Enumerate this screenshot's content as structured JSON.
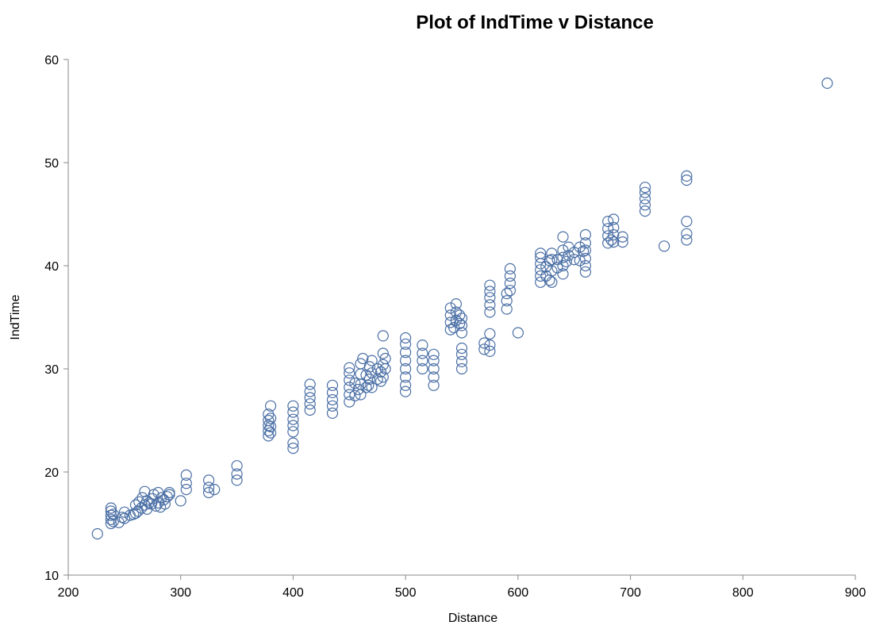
{
  "chart_data": {
    "type": "scatter",
    "title": "Plot of IndTime v Distance",
    "xlabel": "Distance",
    "ylabel": "IndTime",
    "xlim": [
      200,
      900
    ],
    "ylim": [
      10,
      60
    ],
    "xticks": [
      "200",
      "300",
      "400",
      "500",
      "600",
      "700",
      "800",
      "900"
    ],
    "yticks": [
      "10",
      "20",
      "30",
      "40",
      "50",
      "60"
    ],
    "grid": false,
    "legend": "none",
    "marker": "open-circle",
    "color": "#4a6fa5",
    "series": [
      {
        "points": [
          [
            226,
            14.0
          ],
          [
            238,
            15.0
          ],
          [
            238,
            15.4
          ],
          [
            238,
            15.8
          ],
          [
            238,
            16.2
          ],
          [
            238,
            16.5
          ],
          [
            240,
            15.2
          ],
          [
            240,
            15.9
          ],
          [
            245,
            15.1
          ],
          [
            248,
            15.6
          ],
          [
            250,
            15.5
          ],
          [
            250,
            16.1
          ],
          [
            255,
            15.8
          ],
          [
            258,
            15.9
          ],
          [
            260,
            16.0
          ],
          [
            260,
            16.8
          ],
          [
            262,
            16.2
          ],
          [
            263,
            17.1
          ],
          [
            265,
            16.5
          ],
          [
            266,
            17.5
          ],
          [
            268,
            16.8
          ],
          [
            268,
            18.1
          ],
          [
            270,
            16.4
          ],
          [
            270,
            17.2
          ],
          [
            272,
            17.0
          ],
          [
            274,
            16.9
          ],
          [
            275,
            17.4
          ],
          [
            276,
            17.8
          ],
          [
            278,
            16.7
          ],
          [
            280,
            17.0
          ],
          [
            280,
            18.0
          ],
          [
            282,
            16.6
          ],
          [
            283,
            17.5
          ],
          [
            285,
            17.3
          ],
          [
            286,
            16.9
          ],
          [
            288,
            17.6
          ],
          [
            290,
            17.8
          ],
          [
            290,
            18.0
          ],
          [
            300,
            17.2
          ],
          [
            305,
            18.3
          ],
          [
            305,
            18.9
          ],
          [
            305,
            19.7
          ],
          [
            325,
            18.0
          ],
          [
            325,
            18.5
          ],
          [
            325,
            19.2
          ],
          [
            330,
            18.3
          ],
          [
            350,
            19.2
          ],
          [
            350,
            19.8
          ],
          [
            350,
            20.6
          ],
          [
            378,
            23.5
          ],
          [
            378,
            24.0
          ],
          [
            378,
            24.5
          ],
          [
            378,
            25.0
          ],
          [
            378,
            25.6
          ],
          [
            380,
            23.8
          ],
          [
            380,
            24.4
          ],
          [
            380,
            25.2
          ],
          [
            380,
            26.4
          ],
          [
            400,
            22.3
          ],
          [
            400,
            22.8
          ],
          [
            400,
            23.9
          ],
          [
            400,
            24.5
          ],
          [
            400,
            25.1
          ],
          [
            400,
            25.8
          ],
          [
            400,
            26.4
          ],
          [
            415,
            26.0
          ],
          [
            415,
            26.6
          ],
          [
            415,
            27.2
          ],
          [
            415,
            27.8
          ],
          [
            415,
            28.5
          ],
          [
            435,
            25.7
          ],
          [
            435,
            26.4
          ],
          [
            435,
            27.0
          ],
          [
            435,
            27.7
          ],
          [
            435,
            28.4
          ],
          [
            450,
            26.8
          ],
          [
            450,
            27.5
          ],
          [
            450,
            28.2
          ],
          [
            450,
            28.9
          ],
          [
            450,
            29.6
          ],
          [
            450,
            30.1
          ],
          [
            455,
            27.4
          ],
          [
            455,
            28.6
          ],
          [
            458,
            28.0
          ],
          [
            460,
            27.5
          ],
          [
            460,
            28.5
          ],
          [
            460,
            29.5
          ],
          [
            460,
            30.5
          ],
          [
            462,
            31.0
          ],
          [
            465,
            28.2
          ],
          [
            465,
            29.4
          ],
          [
            467,
            28.4
          ],
          [
            468,
            29.0
          ],
          [
            468,
            30.2
          ],
          [
            470,
            28.2
          ],
          [
            470,
            29.6
          ],
          [
            470,
            30.8
          ],
          [
            475,
            29.0
          ],
          [
            475,
            30.0
          ],
          [
            478,
            28.8
          ],
          [
            478,
            29.7
          ],
          [
            480,
            29.2
          ],
          [
            480,
            30.4
          ],
          [
            480,
            31.5
          ],
          [
            480,
            33.2
          ],
          [
            482,
            30.0
          ],
          [
            482,
            31.0
          ],
          [
            500,
            27.8
          ],
          [
            500,
            28.4
          ],
          [
            500,
            29.2
          ],
          [
            500,
            30.0
          ],
          [
            500,
            30.8
          ],
          [
            500,
            31.6
          ],
          [
            500,
            32.4
          ],
          [
            500,
            33.0
          ],
          [
            515,
            30.0
          ],
          [
            515,
            30.8
          ],
          [
            515,
            31.5
          ],
          [
            515,
            32.3
          ],
          [
            525,
            28.4
          ],
          [
            525,
            29.2
          ],
          [
            525,
            30.0
          ],
          [
            525,
            30.8
          ],
          [
            525,
            31.4
          ],
          [
            540,
            33.8
          ],
          [
            540,
            34.5
          ],
          [
            540,
            35.2
          ],
          [
            540,
            35.9
          ],
          [
            543,
            34.0
          ],
          [
            545,
            34.7
          ],
          [
            545,
            35.5
          ],
          [
            545,
            36.3
          ],
          [
            548,
            34.4
          ],
          [
            548,
            35.2
          ],
          [
            550,
            30.0
          ],
          [
            550,
            30.7
          ],
          [
            550,
            31.4
          ],
          [
            550,
            32.0
          ],
          [
            550,
            33.5
          ],
          [
            550,
            34.2
          ],
          [
            550,
            34.9
          ],
          [
            570,
            31.9
          ],
          [
            570,
            32.5
          ],
          [
            575,
            31.7
          ],
          [
            575,
            32.3
          ],
          [
            575,
            33.4
          ],
          [
            575,
            35.5
          ],
          [
            575,
            36.2
          ],
          [
            575,
            36.9
          ],
          [
            575,
            37.5
          ],
          [
            575,
            38.1
          ],
          [
            590,
            35.8
          ],
          [
            590,
            36.6
          ],
          [
            590,
            37.3
          ],
          [
            593,
            37.6
          ],
          [
            593,
            38.3
          ],
          [
            593,
            39.0
          ],
          [
            593,
            39.7
          ],
          [
            600,
            33.5
          ],
          [
            620,
            38.4
          ],
          [
            620,
            39.0
          ],
          [
            620,
            39.6
          ],
          [
            620,
            40.2
          ],
          [
            620,
            40.8
          ],
          [
            620,
            41.2
          ],
          [
            625,
            39.0
          ],
          [
            625,
            39.9
          ],
          [
            628,
            38.6
          ],
          [
            628,
            40.5
          ],
          [
            630,
            38.4
          ],
          [
            630,
            39.5
          ],
          [
            630,
            40.6
          ],
          [
            630,
            41.2
          ],
          [
            635,
            39.8
          ],
          [
            635,
            40.6
          ],
          [
            640,
            39.2
          ],
          [
            640,
            40.0
          ],
          [
            640,
            40.8
          ],
          [
            640,
            41.5
          ],
          [
            640,
            42.8
          ],
          [
            643,
            40.4
          ],
          [
            645,
            41.0
          ],
          [
            645,
            41.8
          ],
          [
            650,
            40.6
          ],
          [
            650,
            41.3
          ],
          [
            655,
            40.5
          ],
          [
            655,
            41.8
          ],
          [
            658,
            41.4
          ],
          [
            660,
            39.4
          ],
          [
            660,
            40.0
          ],
          [
            660,
            40.7
          ],
          [
            660,
            41.5
          ],
          [
            660,
            42.2
          ],
          [
            660,
            43.0
          ],
          [
            680,
            42.2
          ],
          [
            680,
            42.9
          ],
          [
            680,
            43.6
          ],
          [
            680,
            44.3
          ],
          [
            683,
            42.5
          ],
          [
            685,
            42.3
          ],
          [
            685,
            43.0
          ],
          [
            685,
            43.7
          ],
          [
            685,
            44.5
          ],
          [
            693,
            42.3
          ],
          [
            693,
            42.8
          ],
          [
            713,
            45.3
          ],
          [
            713,
            45.9
          ],
          [
            713,
            46.5
          ],
          [
            713,
            47.1
          ],
          [
            713,
            47.6
          ],
          [
            730,
            41.9
          ],
          [
            750,
            42.5
          ],
          [
            750,
            43.1
          ],
          [
            750,
            44.3
          ],
          [
            750,
            48.3
          ],
          [
            750,
            48.7
          ],
          [
            875,
            57.7
          ]
        ]
      }
    ]
  }
}
